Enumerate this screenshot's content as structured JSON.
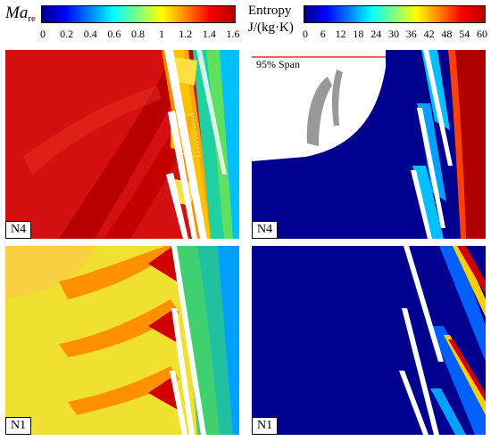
{
  "ma_colorbar": {
    "symbol": "Ma",
    "subscript": "re",
    "ticks": [
      "0",
      "0.2",
      "0.4",
      "0.6",
      "0.8",
      "1",
      "1.2",
      "1.4",
      "1.6"
    ],
    "range": [
      0,
      1.6
    ]
  },
  "entropy_colorbar": {
    "title": "Entropy",
    "unit": "J/(kg·K)",
    "ticks": [
      "0",
      "6",
      "12",
      "18",
      "24",
      "30",
      "36",
      "42",
      "48",
      "54",
      "60"
    ],
    "range": [
      0,
      60
    ]
  },
  "panels": {
    "top_left": {
      "tag": "N4",
      "field": "Mach"
    },
    "top_right": {
      "tag": "N4",
      "field": "Entropy",
      "inset_label": "95% Span"
    },
    "bottom_left": {
      "tag": "N1",
      "field": "Mach"
    },
    "bottom_right": {
      "tag": "N1",
      "field": "Entropy"
    }
  },
  "colors": {
    "jet_blue": "#00008f",
    "jet_red": "#b00000",
    "blade": "#ffffff",
    "span_line": "#e03030"
  }
}
